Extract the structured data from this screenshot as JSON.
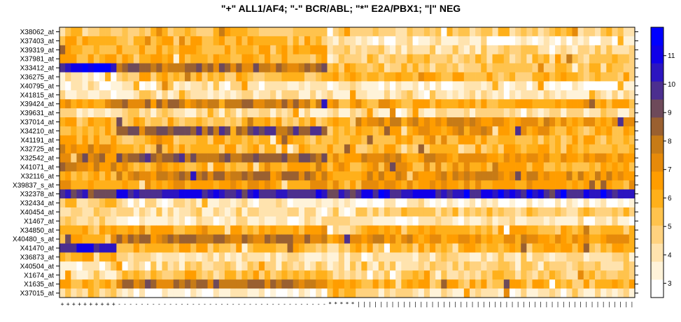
{
  "chart_data": {
    "type": "heatmap",
    "title": "\"+\" ALL1/AF4; \"-\" BCR/ABL; \"*\" E2A/PBX1; \"|\" NEG",
    "xlabel": "",
    "ylabel": "",
    "rows": [
      "X38062_at",
      "X37403_at",
      "X39319_at",
      "X37981_at",
      "X33412_at",
      "X36275_at",
      "X40795_at",
      "X41815_at",
      "X39424_at",
      "X39631_at",
      "X37014_at",
      "X34210_at",
      "X41191_at",
      "X32725_at",
      "X32542_at",
      "X41071_at",
      "X32116_at",
      "X39837_s_at",
      "X32378_at",
      "X32434_at",
      "X40454_at",
      "X1467_at",
      "X34850_at",
      "X40480_s_at",
      "X41470_at",
      "X36873_at",
      "X40504_at",
      "X1674_at",
      "X1635_at",
      "X37015_at"
    ],
    "columns": [
      "+",
      "+",
      "+",
      "+",
      "+",
      "+",
      "+",
      "+",
      "+",
      "+",
      "-",
      "-",
      "-",
      "-",
      "-",
      "-",
      "-",
      "-",
      "-",
      "-",
      "-",
      "-",
      "-",
      "-",
      "-",
      "-",
      "-",
      "-",
      "-",
      "-",
      "-",
      "-",
      "-",
      "-",
      "-",
      "-",
      "-",
      "-",
      "-",
      "-",
      "-",
      "-",
      "-",
      "-",
      "-",
      "-",
      "-",
      "*",
      "*",
      "*",
      "*",
      "*",
      "|",
      "|",
      "|",
      "|",
      "|",
      "|",
      "|",
      "|",
      "|",
      "|",
      "|",
      "|",
      "|",
      "|",
      "|",
      "|",
      "|",
      "|",
      "|",
      "|",
      "|",
      "|",
      "|",
      "|",
      "|",
      "|",
      "|",
      "|",
      "|",
      "|",
      "|",
      "|",
      "|",
      "|",
      "|",
      "|",
      "|",
      "|",
      "|",
      "|",
      "|",
      "|",
      "|",
      "|",
      "|",
      "|",
      "|",
      "|",
      "|"
    ],
    "value_range": [
      2.5,
      12
    ],
    "colorkey_ticks": [
      3,
      4,
      5,
      6,
      7,
      8,
      9,
      10,
      11
    ],
    "color_scale": [
      "#ffffff",
      "#fff3d9",
      "#ffe3ae",
      "#ffd27f",
      "#ffc34d",
      "#ffb01a",
      "#ff9d00",
      "#e68a0a",
      "#c77b16",
      "#9a6030",
      "#6e4a5a",
      "#4c2f8f",
      "#2c15c0",
      "#1000e8",
      "#0000ff"
    ],
    "row_profiles": [
      {
        "row": "X38062_at",
        "groups": [
          5.3,
          5.4,
          5.3,
          5.1,
          5.0
        ]
      },
      {
        "row": "X37403_at",
        "groups": [
          6.0,
          5.7,
          4.5,
          3.6,
          3.4
        ]
      },
      {
        "row": "X39319_at",
        "groups": [
          6.0,
          5.8,
          4.8,
          4.4,
          4.4
        ]
      },
      {
        "row": "X37981_at",
        "groups": [
          6.0,
          5.9,
          4.3,
          5.1,
          5.0
        ]
      },
      {
        "row": "X33412_at",
        "groups": [
          11.0,
          8.2,
          5.6,
          5.1,
          5.0
        ]
      },
      {
        "row": "X36275_at",
        "groups": [
          3.7,
          5.6,
          6.0,
          5.8,
          5.7
        ]
      },
      {
        "row": "X40795_at",
        "groups": [
          3.6,
          3.8,
          3.6,
          3.5,
          3.4
        ]
      },
      {
        "row": "X41815_at",
        "groups": [
          3.8,
          4.2,
          4.5,
          4.2,
          4.1
        ]
      },
      {
        "row": "X39424_at",
        "groups": [
          6.3,
          7.8,
          6.2,
          6.2,
          6.0
        ]
      },
      {
        "row": "X39631_at",
        "groups": [
          4.2,
          4.3,
          4.2,
          4.1,
          4.0
        ]
      },
      {
        "row": "X37014_at",
        "groups": [
          5.8,
          5.6,
          5.8,
          7.2,
          7.0
        ]
      },
      {
        "row": "X34210_at",
        "groups": [
          5.8,
          9.0,
          5.8,
          6.5,
          6.3
        ]
      },
      {
        "row": "X41191_at",
        "groups": [
          6.0,
          5.7,
          6.0,
          5.8,
          5.8
        ]
      },
      {
        "row": "X32725_at",
        "groups": [
          7.1,
          5.8,
          5.8,
          5.7,
          5.7
        ]
      },
      {
        "row": "X32542_at",
        "groups": [
          7.3,
          8.4,
          6.2,
          7.0,
          6.8
        ]
      },
      {
        "row": "X41071_at",
        "groups": [
          7.3,
          6.2,
          6.2,
          6.2,
          6.0
        ]
      },
      {
        "row": "X32116_at",
        "groups": [
          6.2,
          7.7,
          5.8,
          7.2,
          7.0
        ]
      },
      {
        "row": "X39837_s_at",
        "groups": [
          6.5,
          6.6,
          6.2,
          6.5,
          6.3
        ]
      },
      {
        "row": "X32378_at",
        "groups": [
          9.8,
          10.4,
          10.0,
          10.5,
          10.3
        ]
      },
      {
        "row": "X32434_at",
        "groups": [
          5.1,
          4.0,
          3.8,
          3.5,
          3.4
        ]
      },
      {
        "row": "X40454_at",
        "groups": [
          4.6,
          4.3,
          4.6,
          5.2,
          5.1
        ]
      },
      {
        "row": "X1467_at",
        "groups": [
          4.6,
          3.9,
          4.1,
          3.8,
          3.7
        ]
      },
      {
        "row": "X34850_at",
        "groups": [
          5.8,
          6.2,
          4.4,
          5.8,
          5.7
        ]
      },
      {
        "row": "X40480_s_at",
        "groups": [
          6.0,
          7.8,
          6.5,
          6.8,
          6.7
        ]
      },
      {
        "row": "X41470_at",
        "groups": [
          10.4,
          5.9,
          5.0,
          5.9,
          5.8
        ]
      },
      {
        "row": "X36873_at",
        "groups": [
          6.0,
          3.9,
          3.8,
          4.3,
          4.2
        ]
      },
      {
        "row": "X40504_at",
        "groups": [
          3.6,
          4.4,
          4.5,
          4.7,
          4.6
        ]
      },
      {
        "row": "X1674_at",
        "groups": [
          4.3,
          5.5,
          4.7,
          5.0,
          4.9
        ]
      },
      {
        "row": "X1635_at",
        "groups": [
          6.0,
          8.1,
          6.4,
          5.9,
          5.8
        ]
      },
      {
        "row": "X37015_at",
        "groups": [
          4.8,
          3.5,
          6.2,
          4.1,
          4.0
        ]
      }
    ],
    "legend_position": "right",
    "grid": false
  }
}
